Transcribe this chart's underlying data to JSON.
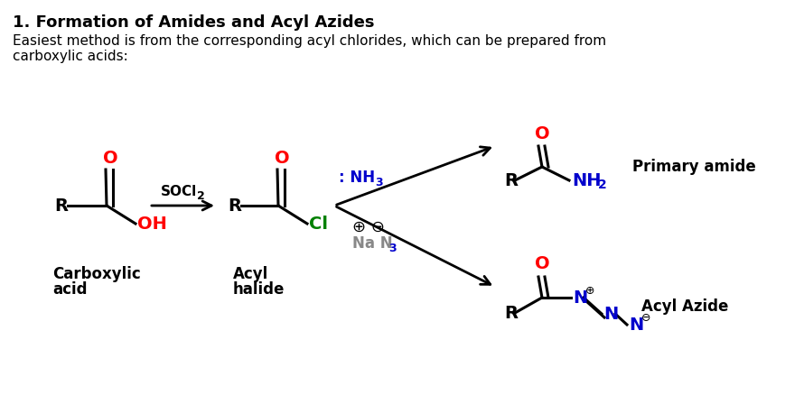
{
  "title": "1. Formation of Amides and Acyl Azides",
  "subtitle": "Easiest method is from the corresponding acyl chlorides, which can be prepared from\ncarboxylic acids:",
  "bg_color": "#ffffff",
  "text_color": "#000000",
  "red_color": "#ff0000",
  "green_color": "#008000",
  "blue_color": "#0000cc",
  "gray_color": "#888888",
  "carboxylic_acid_label": [
    "Carboxylic",
    "acid"
  ],
  "acyl_halide_label": [
    "Acyl",
    "halide"
  ],
  "primary_amide_label": "Primary amide",
  "acyl_azide_label": "Acyl Azide",
  "figsize": [
    8.9,
    4.48
  ],
  "dpi": 100
}
